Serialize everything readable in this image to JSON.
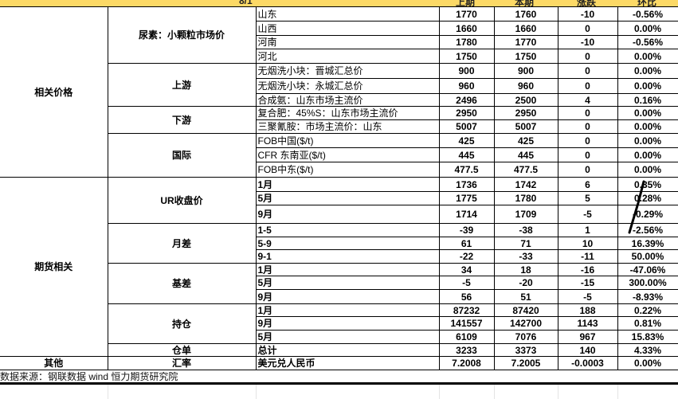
{
  "header": {
    "date": "8/1",
    "cols": [
      "上期",
      "本期",
      "涨跌",
      "环比"
    ],
    "color": "#fcd966"
  },
  "groups": [
    {
      "name": "相关价格",
      "sub": [
        {
          "name": "尿素：小颗粒市场价",
          "rows": [
            [
              "山东",
              "1770",
              "1760",
              "-10",
              "-0.56%"
            ],
            [
              "山西",
              "1660",
              "1660",
              "0",
              "0.00%"
            ],
            [
              "河南",
              "1780",
              "1770",
              "-10",
              "-0.56%"
            ],
            [
              "河北",
              "1750",
              "1750",
              "0",
              "0.00%"
            ]
          ]
        },
        {
          "name": "上游",
          "rows": [
            [
              "无烟洗小块：晋城汇总价",
              "900",
              "900",
              "0",
              "0.00%"
            ],
            [
              "无烟洗小块：永城汇总价",
              "960",
              "960",
              "0",
              "0.00%"
            ],
            [
              "合成氨：山东市场主流价",
              "2496",
              "2500",
              "4",
              "0.16%"
            ]
          ]
        },
        {
          "name": "下游",
          "rows": [
            [
              "复合肥：45%S：山东市场主流价",
              "2950",
              "2950",
              "0",
              "0.00%"
            ],
            [
              "三聚氰胺：市场主流价：山东",
              "5007",
              "5007",
              "0",
              "0.00%"
            ]
          ]
        },
        {
          "name": "国际",
          "rows": [
            [
              "FOB中国($/t)",
              "425",
              "425",
              "0",
              "0.00%"
            ],
            [
              "CFR 东南亚($/t)",
              "445",
              "445",
              "0",
              "0.00%"
            ],
            [
              "FOB中东($/t)",
              "477.5",
              "477.5",
              "0",
              "0.00%"
            ]
          ]
        }
      ]
    },
    {
      "name": "期货相关",
      "sub": [
        {
          "name": "UR收盘价",
          "rows": [
            [
              "1月",
              "1736",
              "1742",
              "6",
              "0.35%"
            ],
            [
              "5月",
              "1775",
              "1780",
              "5",
              "0.28%"
            ],
            [
              "9月",
              "1714",
              "1709",
              "-5",
              "-0.29%"
            ]
          ]
        },
        {
          "name": "月差",
          "rows": [
            [
              "1-5",
              "-39",
              "-38",
              "1",
              "-2.56%"
            ],
            [
              "5-9",
              "61",
              "71",
              "10",
              "16.39%"
            ],
            [
              "9-1",
              "-22",
              "-33",
              "-11",
              "50.00%"
            ]
          ]
        },
        {
          "name": "基差",
          "rows": [
            [
              "1月",
              "34",
              "18",
              "-16",
              "-47.06%"
            ],
            [
              "5月",
              "-5",
              "-20",
              "-15",
              "300.00%"
            ],
            [
              "9月",
              "56",
              "51",
              "-5",
              "-8.93%"
            ]
          ]
        },
        {
          "name": "持仓",
          "rows": [
            [
              "1月",
              "87232",
              "87420",
              "188",
              "0.22%"
            ],
            [
              "9月",
              "141557",
              "142700",
              "1143",
              "0.81%"
            ],
            [
              "5月",
              "6109",
              "7076",
              "967",
              "15.83%"
            ]
          ]
        },
        {
          "name": "仓单",
          "rows": [
            [
              "总计",
              "3233",
              "3373",
              "140",
              "4.33%"
            ]
          ]
        }
      ]
    },
    {
      "name": "其他",
      "sub": [
        {
          "name": "汇率",
          "rows": [
            [
              "美元兑人民币",
              "7.2008",
              "7.2005",
              "-0.0003",
              "0.00%"
            ]
          ]
        }
      ]
    }
  ],
  "source": "数据来源：钢联数据 wind 恒力期货研究院"
}
